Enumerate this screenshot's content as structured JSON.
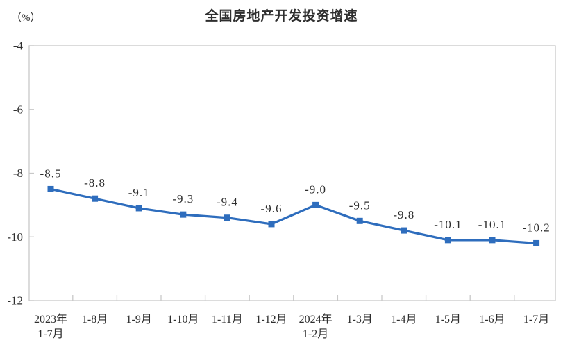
{
  "title": "全国房地产开发投资增速",
  "unit_label": "（%）",
  "chart_data": {
    "type": "line",
    "title": "全国房地产开发投资增速",
    "ylabel": "（%）",
    "categories": [
      [
        "2023年",
        "1-7月"
      ],
      [
        "1-8月"
      ],
      [
        "1-9月"
      ],
      [
        "1-10月"
      ],
      [
        "1-11月"
      ],
      [
        "1-12月"
      ],
      [
        "2024年",
        "1-2月"
      ],
      [
        "1-3月"
      ],
      [
        "1-4月"
      ],
      [
        "1-5月"
      ],
      [
        "1-6月"
      ],
      [
        "1-7月"
      ]
    ],
    "values": [
      -8.5,
      -8.8,
      -9.1,
      -9.3,
      -9.4,
      -9.6,
      -9.0,
      -9.5,
      -9.8,
      -10.1,
      -10.1,
      -10.2
    ],
    "data_labels": [
      "-8.5",
      "-8.8",
      "-9.1",
      "-9.3",
      "-9.4",
      "-9.6",
      "-9.0",
      "-9.5",
      "-9.8",
      "-10.1",
      "-10.1",
      "-10.2"
    ],
    "ylim": [
      -12,
      -4
    ],
    "yticks": [
      -4,
      -6,
      -8,
      -10,
      -12
    ],
    "ytick_labels": [
      "-4",
      "-6",
      "-8",
      "-10",
      "-12"
    ],
    "grid": false,
    "legend": false,
    "line_color": "#2e6dbd",
    "marker": "square",
    "axis_color": "#c8c8c8",
    "text_color": "#2e2e2e"
  }
}
